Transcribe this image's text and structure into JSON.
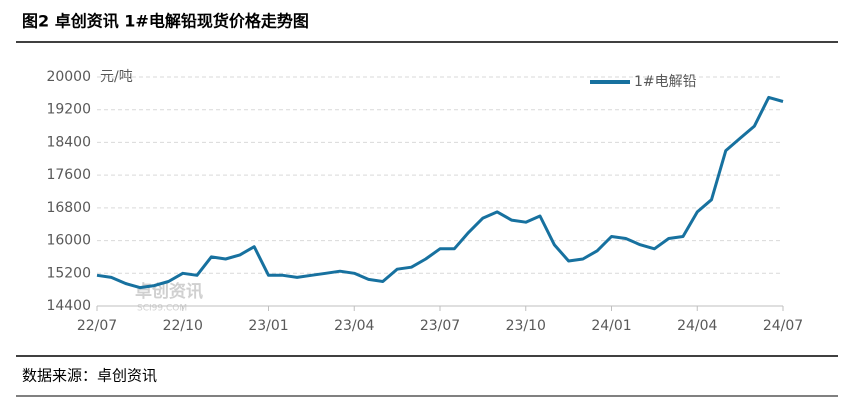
{
  "header": {
    "title": "图2  卓创资讯 1#电解铅现货价格走势图"
  },
  "chart_data": {
    "type": "line",
    "y_unit_label": "元/吨",
    "categories": [
      "22/07",
      null,
      null,
      null,
      null,
      null,
      "22/10",
      null,
      null,
      null,
      null,
      null,
      "23/01",
      null,
      null,
      null,
      null,
      null,
      "23/04",
      null,
      null,
      null,
      null,
      null,
      "23/07",
      null,
      null,
      null,
      null,
      null,
      "23/10",
      null,
      null,
      null,
      null,
      null,
      "24/01",
      null,
      null,
      null,
      null,
      null,
      "24/04",
      null,
      null,
      null,
      null,
      null,
      "24/07"
    ],
    "series": [
      {
        "name": "1#电解铅",
        "color": "#17719f",
        "values": [
          15150,
          15100,
          14950,
          14850,
          14900,
          15000,
          15200,
          15150,
          15600,
          15550,
          15650,
          15850,
          15150,
          15150,
          15100,
          15150,
          15200,
          15250,
          15200,
          15050,
          15000,
          15300,
          15350,
          15550,
          15800,
          15800,
          16200,
          16550,
          16700,
          16500,
          16450,
          16600,
          15900,
          15500,
          15550,
          15750,
          16100,
          16050,
          15900,
          15800,
          16050,
          16100,
          16700,
          17000,
          18200,
          18500,
          18800,
          19500,
          19400
        ]
      }
    ],
    "ylim": [
      14400,
      20000
    ],
    "yticks": [
      14400,
      15200,
      16000,
      16800,
      17600,
      18400,
      19200,
      20000
    ],
    "grid": true,
    "legend": "top-right",
    "watermark": [
      "卓创资讯",
      "SCI99.COM"
    ]
  },
  "footer": {
    "source": "数据来源：卓创资讯"
  }
}
